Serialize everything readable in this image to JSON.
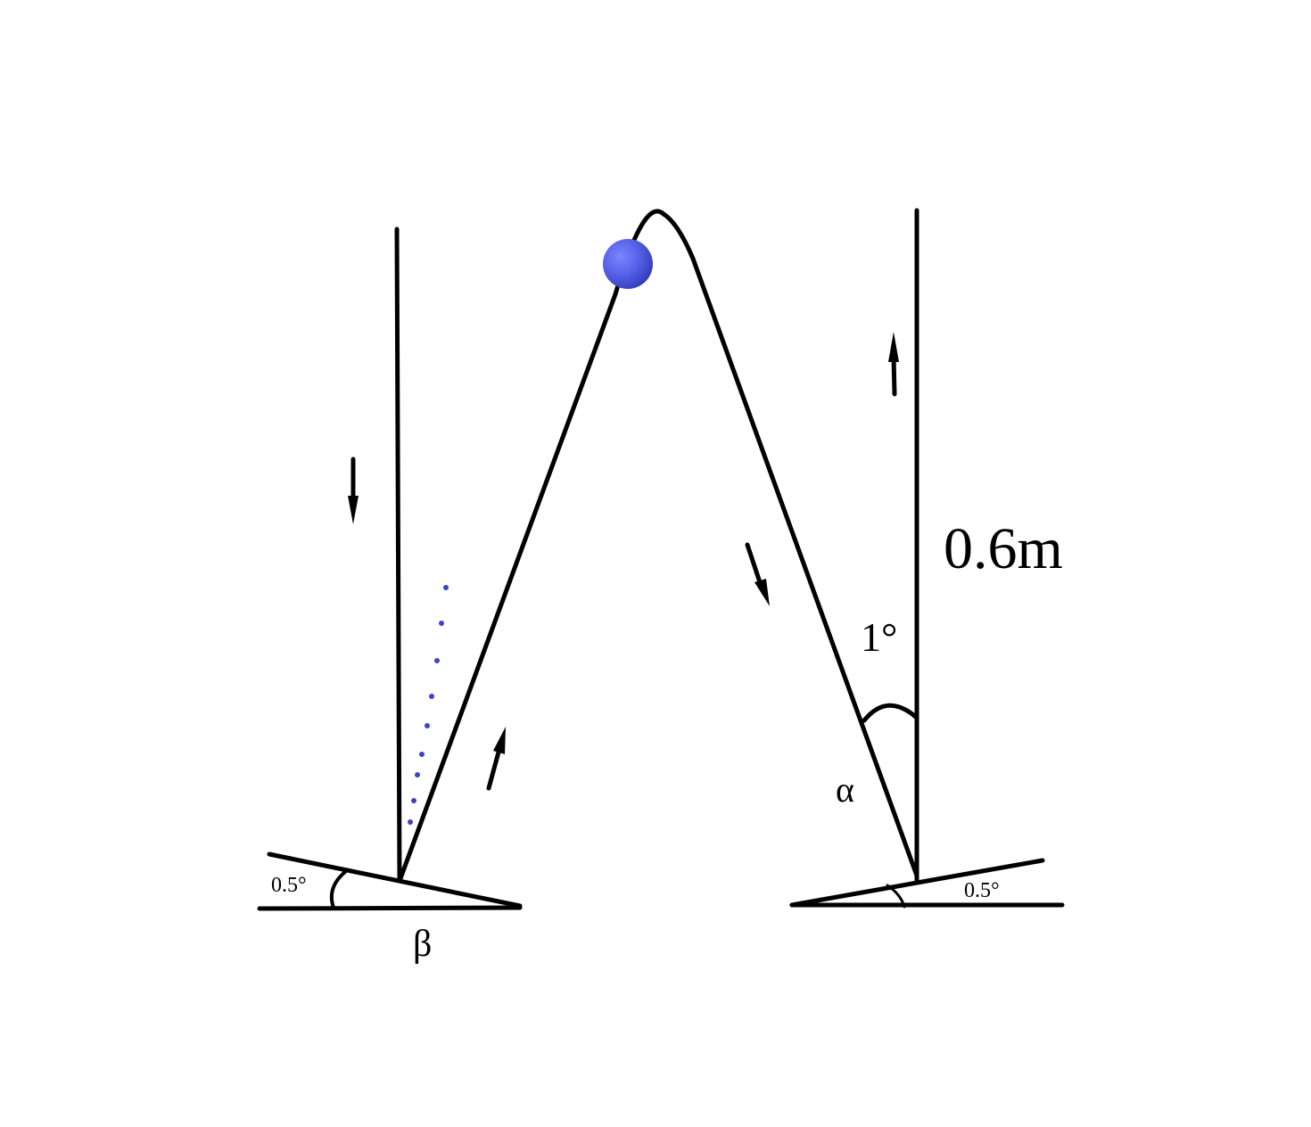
{
  "diagram": {
    "labels": {
      "height": "0.6m",
      "angle_top": "1°",
      "alpha": "α",
      "beta": "β",
      "left_base_angle": "0.5°",
      "right_base_angle": "0.5°"
    },
    "colors": {
      "stroke": "#000000",
      "ball_light": "#6f78ff",
      "ball_dark": "#3a44c8",
      "dots": "#3b43c8"
    },
    "elements": {
      "ball": "blue ball",
      "dotted_trail": "dotted path"
    }
  }
}
